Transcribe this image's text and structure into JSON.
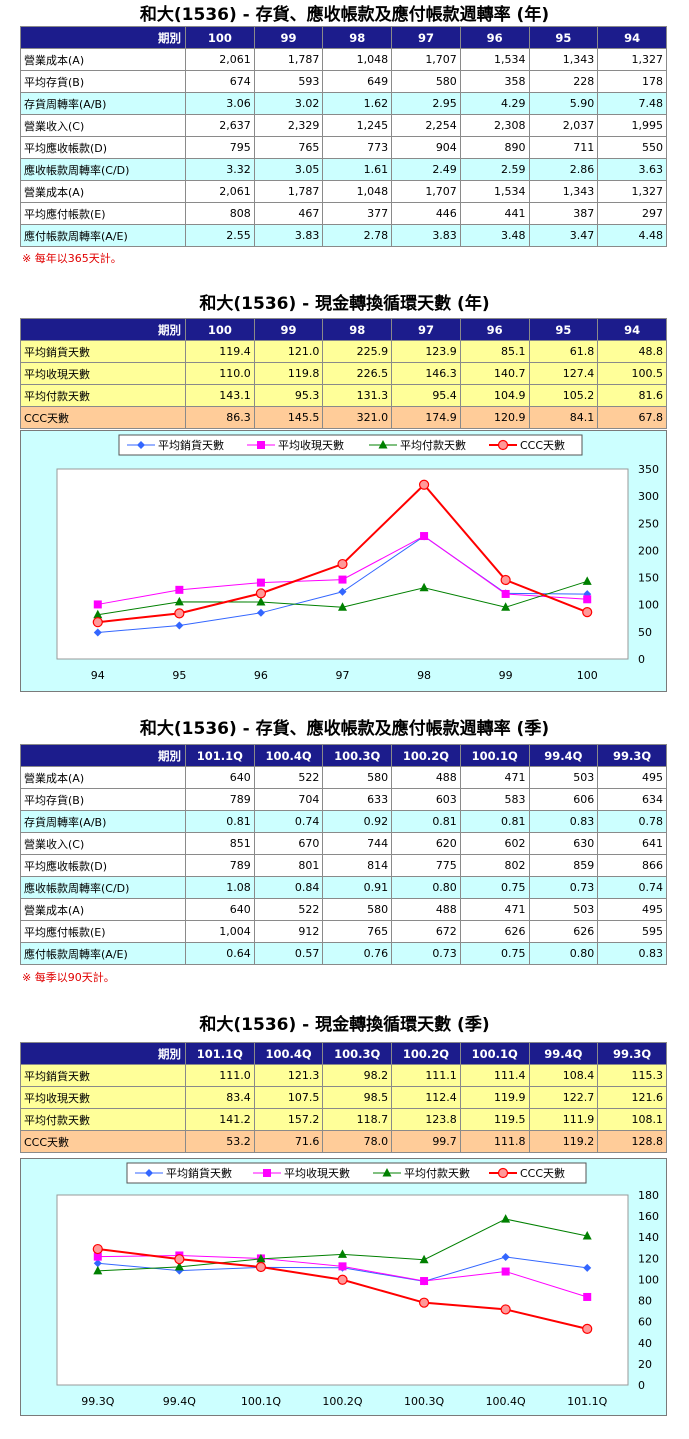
{
  "annual_rates": {
    "title": "和大(1536) - 存貨、應收帳款及應付帳款週轉率 (年)",
    "period_label": "期別",
    "periods": [
      "100",
      "99",
      "98",
      "97",
      "96",
      "95",
      "94"
    ],
    "rows": [
      {
        "label": "營業成本(A)",
        "values": [
          "2,061",
          "1,787",
          "1,048",
          "1,707",
          "1,534",
          "1,343",
          "1,327"
        ],
        "style": "w"
      },
      {
        "label": "平均存貨(B)",
        "values": [
          "674",
          "593",
          "649",
          "580",
          "358",
          "228",
          "178"
        ],
        "style": "w"
      },
      {
        "label": "存貨周轉率(A/B)",
        "values": [
          "3.06",
          "3.02",
          "1.62",
          "2.95",
          "4.29",
          "5.90",
          "7.48"
        ],
        "style": "c"
      },
      {
        "label": "營業收入(C)",
        "values": [
          "2,637",
          "2,329",
          "1,245",
          "2,254",
          "2,308",
          "2,037",
          "1,995"
        ],
        "style": "w"
      },
      {
        "label": "平均應收帳款(D)",
        "values": [
          "795",
          "765",
          "773",
          "904",
          "890",
          "711",
          "550"
        ],
        "style": "w"
      },
      {
        "label": "應收帳款周轉率(C/D)",
        "values": [
          "3.32",
          "3.05",
          "1.61",
          "2.49",
          "2.59",
          "2.86",
          "3.63"
        ],
        "style": "c"
      },
      {
        "label": "營業成本(A)",
        "values": [
          "2,061",
          "1,787",
          "1,048",
          "1,707",
          "1,534",
          "1,343",
          "1,327"
        ],
        "style": "w"
      },
      {
        "label": "平均應付帳款(E)",
        "values": [
          "808",
          "467",
          "377",
          "446",
          "441",
          "387",
          "297"
        ],
        "style": "w"
      },
      {
        "label": "應付帳款周轉率(A/E)",
        "values": [
          "2.55",
          "3.83",
          "2.78",
          "3.83",
          "3.48",
          "3.47",
          "4.48"
        ],
        "style": "c"
      }
    ],
    "note": "※ 每年以365天計。"
  },
  "annual_ccc": {
    "title": "和大(1536) - 現金轉換循環天數 (年)",
    "period_label": "期別",
    "periods": [
      "100",
      "99",
      "98",
      "97",
      "96",
      "95",
      "94"
    ],
    "rows": [
      {
        "label": "平均銷貨天數",
        "values": [
          "119.4",
          "121.0",
          "225.9",
          "123.9",
          "85.1",
          "61.8",
          "48.8"
        ],
        "style": "y"
      },
      {
        "label": "平均收現天數",
        "values": [
          "110.0",
          "119.8",
          "226.5",
          "146.3",
          "140.7",
          "127.4",
          "100.5"
        ],
        "style": "y"
      },
      {
        "label": "平均付款天數",
        "values": [
          "143.1",
          "95.3",
          "131.3",
          "95.4",
          "104.9",
          "105.2",
          "81.6"
        ],
        "style": "y"
      },
      {
        "label": "CCC天數",
        "values": [
          "86.3",
          "145.5",
          "321.0",
          "174.9",
          "120.9",
          "84.1",
          "67.8"
        ],
        "style": "o"
      }
    ]
  },
  "quarterly_rates": {
    "title": "和大(1536) - 存貨、應收帳款及應付帳款週轉率 (季)",
    "period_label": "期別",
    "periods": [
      "101.1Q",
      "100.4Q",
      "100.3Q",
      "100.2Q",
      "100.1Q",
      "99.4Q",
      "99.3Q"
    ],
    "rows": [
      {
        "label": "營業成本(A)",
        "values": [
          "640",
          "522",
          "580",
          "488",
          "471",
          "503",
          "495"
        ],
        "style": "w"
      },
      {
        "label": "平均存貨(B)",
        "values": [
          "789",
          "704",
          "633",
          "603",
          "583",
          "606",
          "634"
        ],
        "style": "w"
      },
      {
        "label": "存貨周轉率(A/B)",
        "values": [
          "0.81",
          "0.74",
          "0.92",
          "0.81",
          "0.81",
          "0.83",
          "0.78"
        ],
        "style": "c"
      },
      {
        "label": "營業收入(C)",
        "values": [
          "851",
          "670",
          "744",
          "620",
          "602",
          "630",
          "641"
        ],
        "style": "w"
      },
      {
        "label": "平均應收帳款(D)",
        "values": [
          "789",
          "801",
          "814",
          "775",
          "802",
          "859",
          "866"
        ],
        "style": "w"
      },
      {
        "label": "應收帳款周轉率(C/D)",
        "values": [
          "1.08",
          "0.84",
          "0.91",
          "0.80",
          "0.75",
          "0.73",
          "0.74"
        ],
        "style": "c"
      },
      {
        "label": "營業成本(A)",
        "values": [
          "640",
          "522",
          "580",
          "488",
          "471",
          "503",
          "495"
        ],
        "style": "w"
      },
      {
        "label": "平均應付帳款(E)",
        "values": [
          "1,004",
          "912",
          "765",
          "672",
          "626",
          "626",
          "595"
        ],
        "style": "w"
      },
      {
        "label": "應付帳款周轉率(A/E)",
        "values": [
          "0.64",
          "0.57",
          "0.76",
          "0.73",
          "0.75",
          "0.80",
          "0.83"
        ],
        "style": "c"
      }
    ],
    "note": "※ 每季以90天計。"
  },
  "quarterly_ccc": {
    "title": "和大(1536) - 現金轉換循環天數 (季)",
    "period_label": "期別",
    "periods": [
      "101.1Q",
      "100.4Q",
      "100.3Q",
      "100.2Q",
      "100.1Q",
      "99.4Q",
      "99.3Q"
    ],
    "rows": [
      {
        "label": "平均銷貨天數",
        "values": [
          "111.0",
          "121.3",
          "98.2",
          "111.1",
          "111.4",
          "108.4",
          "115.3"
        ],
        "style": "y"
      },
      {
        "label": "平均收現天數",
        "values": [
          "83.4",
          "107.5",
          "98.5",
          "112.4",
          "119.9",
          "122.7",
          "121.6"
        ],
        "style": "y"
      },
      {
        "label": "平均付款天數",
        "values": [
          "141.2",
          "157.2",
          "118.7",
          "123.8",
          "119.5",
          "111.9",
          "108.1"
        ],
        "style": "y"
      },
      {
        "label": "CCC天數",
        "values": [
          "53.2",
          "71.6",
          "78.0",
          "99.7",
          "111.8",
          "119.2",
          "128.8"
        ],
        "style": "o"
      }
    ]
  },
  "chart_data": [
    {
      "type": "line",
      "categories": [
        "94",
        "95",
        "96",
        "97",
        "98",
        "99",
        "100"
      ],
      "ylim": [
        0,
        350
      ],
      "yticks": [
        0,
        50,
        100,
        150,
        200,
        250,
        300,
        350
      ],
      "grid": false,
      "legend": "top",
      "series": [
        {
          "name": "平均銷貨天數",
          "values": [
            48.8,
            61.8,
            85.1,
            123.9,
            225.9,
            121.0,
            119.4
          ],
          "color": "#3366ff",
          "marker": "diamond",
          "width": 1
        },
        {
          "name": "平均收現天數",
          "values": [
            100.5,
            127.4,
            140.7,
            146.3,
            226.5,
            119.8,
            110.0
          ],
          "color": "#ff00ff",
          "marker": "square",
          "width": 1
        },
        {
          "name": "平均付款天數",
          "values": [
            81.6,
            105.2,
            104.9,
            95.4,
            131.3,
            95.3,
            143.1
          ],
          "color": "#008000",
          "marker": "triangle",
          "width": 1
        },
        {
          "name": "CCC天數",
          "values": [
            67.8,
            84.1,
            120.9,
            174.9,
            321.0,
            145.5,
            86.3
          ],
          "color": "#ff0000",
          "marker": "circle",
          "width": 2
        }
      ]
    },
    {
      "type": "line",
      "categories": [
        "99.3Q",
        "99.4Q",
        "100.1Q",
        "100.2Q",
        "100.3Q",
        "100.4Q",
        "101.1Q"
      ],
      "ylim": [
        0,
        180
      ],
      "yticks": [
        0,
        20,
        40,
        60,
        80,
        100,
        120,
        140,
        160,
        180
      ],
      "grid": false,
      "legend": "top",
      "series": [
        {
          "name": "平均銷貨天數",
          "values": [
            115.3,
            108.4,
            111.4,
            111.1,
            98.2,
            121.3,
            111.0
          ],
          "color": "#3366ff",
          "marker": "diamond",
          "width": 1
        },
        {
          "name": "平均收現天數",
          "values": [
            121.6,
            122.7,
            119.9,
            112.4,
            98.5,
            107.5,
            83.4
          ],
          "color": "#ff00ff",
          "marker": "square",
          "width": 1
        },
        {
          "name": "平均付款天數",
          "values": [
            108.1,
            111.9,
            119.5,
            123.8,
            118.7,
            157.2,
            141.2
          ],
          "color": "#008000",
          "marker": "triangle",
          "width": 1
        },
        {
          "name": "CCC天數",
          "values": [
            128.8,
            119.2,
            111.8,
            99.7,
            78.0,
            71.6,
            53.2
          ],
          "color": "#ff0000",
          "marker": "circle",
          "width": 2
        }
      ]
    }
  ]
}
